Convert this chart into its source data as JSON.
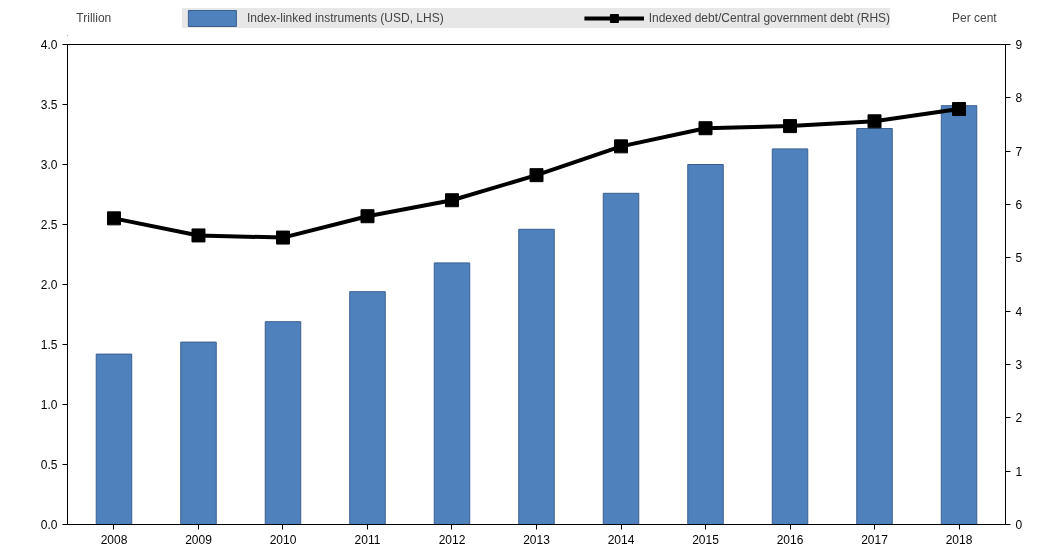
{
  "chart_data": {
    "type": "bar",
    "categories": [
      "2008",
      "2009",
      "2010",
      "2011",
      "2012",
      "2013",
      "2014",
      "2015",
      "2016",
      "2017",
      "2018"
    ],
    "ylabel": "Trillion",
    "y2label": "Per cent",
    "series": [
      {
        "name": "Index-linked instruments (USD, LHS)",
        "color": "#4f81bd",
        "values": [
          1.42,
          1.52,
          1.69,
          1.94,
          2.18,
          2.46,
          2.76,
          3.0,
          3.13,
          3.3,
          3.49
        ]
      },
      {
        "name": "Indexed debt/Central government debt (RHS)",
        "type": "line",
        "axis": "y2",
        "color": "#000000",
        "marker": "square",
        "line_style": "solid",
        "values": [
          5.74,
          5.42,
          5.38,
          5.78,
          6.08,
          6.55,
          7.09,
          7.43,
          7.47,
          7.56,
          7.79
        ]
      }
    ],
    "ylim": [
      0,
      4
    ],
    "yticks": [
      {
        "value": 0,
        "label": "0.0"
      },
      0.5,
      {
        "value": 1,
        "label": "1.0"
      },
      1.5,
      {
        "value": 2,
        "label": "2.0"
      },
      2.5,
      {
        "value": 3,
        "label": "3.0"
      },
      3.5,
      {
        "value": 4,
        "label": "4.0"
      }
    ],
    "y2lim": [
      0,
      9
    ],
    "y2ticks": [
      0,
      1,
      2,
      3,
      4,
      5,
      6,
      7,
      8,
      9
    ],
    "grid": false,
    "legend": "top"
  }
}
